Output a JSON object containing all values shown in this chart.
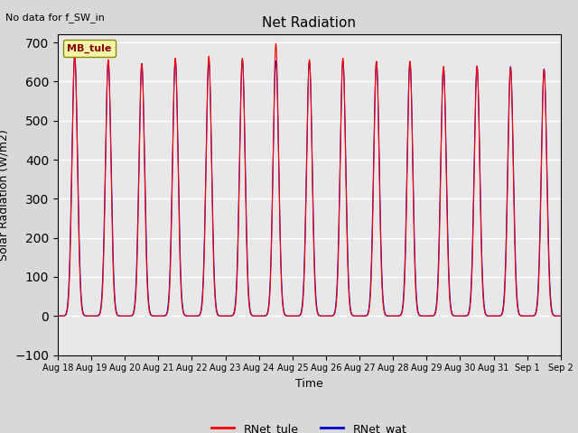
{
  "title": "Net Radiation",
  "xlabel": "Time",
  "ylabel": "Solar Radiation (W/m2)",
  "annotation": "No data for f_SW_in",
  "legend_label1": "RNet_tule",
  "legend_label2": "RNet_wat",
  "legend_label_box": "MB_tule",
  "color1": "#ff0000",
  "color2": "#0000cc",
  "ylim": [
    -100,
    720
  ],
  "yticks": [
    -100,
    0,
    100,
    200,
    300,
    400,
    500,
    600,
    700
  ],
  "xtick_labels": [
    "Aug 18",
    "Aug 19",
    "Aug 20",
    "Aug 21",
    "Aug 22",
    "Aug 23",
    "Aug 24",
    "Aug 25",
    "Aug 26",
    "Aug 27",
    "Aug 28",
    "Aug 29",
    "Aug 30",
    "Aug 31",
    "Sep 1",
    "Sep 2"
  ],
  "background_color": "#e8e8e8",
  "grid_color": "#ffffff",
  "n_days": 15,
  "day_peaks_tule": [
    668,
    656,
    645,
    660,
    665,
    660,
    697,
    656,
    660,
    652,
    652,
    638,
    640,
    635,
    630
  ],
  "day_peaks_wat": [
    665,
    652,
    646,
    655,
    652,
    656,
    653,
    652,
    653,
    651,
    651,
    638,
    638,
    638,
    632
  ],
  "night_tule": [
    -62,
    -62,
    -62,
    -62,
    -62,
    -62,
    -55,
    -62,
    -62,
    -62,
    -62,
    -62,
    -62,
    -62,
    -62
  ],
  "night_wat": [
    -80,
    -80,
    -80,
    -80,
    -80,
    -80,
    -80,
    -80,
    -80,
    -80,
    -80,
    -80,
    -80,
    -80,
    -80
  ],
  "figsize": [
    6.4,
    4.8
  ],
  "dpi": 100
}
